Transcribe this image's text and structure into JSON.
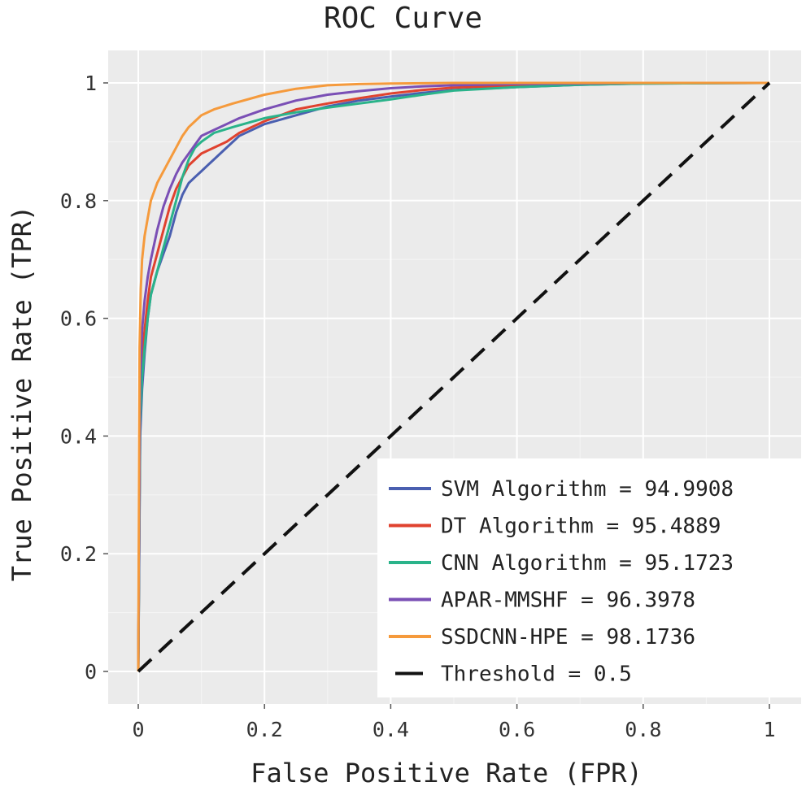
{
  "chart_data": {
    "type": "line",
    "title": "ROC Curve",
    "xlabel": "False Positive Rate (FPR)",
    "ylabel": "True Positive Rate (TPR)",
    "xlim": [
      0,
      1
    ],
    "ylim": [
      0,
      1
    ],
    "xticks": [
      0,
      0.2,
      0.4,
      0.6,
      0.8,
      1
    ],
    "yticks": [
      0,
      0.2,
      0.4,
      0.6,
      0.8,
      1
    ],
    "xtick_labels": [
      "0",
      "0.2",
      "0.4",
      "0.6",
      "0.8",
      "1"
    ],
    "ytick_labels": [
      "0",
      "0.2",
      "0.4",
      "0.6",
      "0.8",
      "1"
    ],
    "grid": true,
    "legend_position": "bottom-right",
    "series": [
      {
        "name": "SVM Algorithm = 94.9908",
        "color": "#4a5fb0",
        "dash": "solid",
        "x": [
          0,
          0.003,
          0.006,
          0.01,
          0.015,
          0.02,
          0.03,
          0.04,
          0.05,
          0.06,
          0.07,
          0.08,
          0.09,
          0.1,
          0.12,
          0.14,
          0.16,
          0.2,
          0.25,
          0.3,
          0.35,
          0.4,
          0.45,
          0.5,
          0.6,
          0.7,
          0.8,
          1
        ],
        "y": [
          0,
          0.4,
          0.48,
          0.54,
          0.6,
          0.64,
          0.68,
          0.71,
          0.74,
          0.78,
          0.81,
          0.83,
          0.84,
          0.85,
          0.87,
          0.89,
          0.91,
          0.93,
          0.945,
          0.96,
          0.97,
          0.977,
          0.983,
          0.988,
          0.993,
          0.997,
          0.999,
          1
        ]
      },
      {
        "name": "DT Algorithm = 95.4889",
        "color": "#e0422f",
        "dash": "solid",
        "x": [
          0,
          0.003,
          0.006,
          0.01,
          0.015,
          0.02,
          0.03,
          0.04,
          0.05,
          0.06,
          0.07,
          0.08,
          0.1,
          0.12,
          0.14,
          0.16,
          0.2,
          0.25,
          0.3,
          0.35,
          0.4,
          0.45,
          0.5,
          0.6,
          0.7,
          0.8,
          1
        ],
        "y": [
          0,
          0.45,
          0.53,
          0.58,
          0.63,
          0.67,
          0.71,
          0.75,
          0.79,
          0.82,
          0.84,
          0.86,
          0.88,
          0.89,
          0.9,
          0.915,
          0.935,
          0.955,
          0.965,
          0.974,
          0.982,
          0.988,
          0.992,
          0.996,
          0.998,
          1,
          1
        ]
      },
      {
        "name": "CNN Algorithm = 95.1723",
        "color": "#2ab38a",
        "dash": "solid",
        "x": [
          0,
          0.003,
          0.006,
          0.01,
          0.015,
          0.02,
          0.03,
          0.04,
          0.05,
          0.06,
          0.07,
          0.08,
          0.09,
          0.1,
          0.12,
          0.15,
          0.2,
          0.25,
          0.3,
          0.35,
          0.4,
          0.45,
          0.5,
          0.6,
          0.7,
          0.8,
          1
        ],
        "y": [
          0,
          0.42,
          0.5,
          0.55,
          0.6,
          0.64,
          0.68,
          0.72,
          0.76,
          0.8,
          0.84,
          0.87,
          0.89,
          0.9,
          0.915,
          0.925,
          0.94,
          0.95,
          0.958,
          0.965,
          0.972,
          0.98,
          0.987,
          0.993,
          0.997,
          0.999,
          1
        ]
      },
      {
        "name": "APAR-MMSHF = 96.3978",
        "color": "#7a4fb5",
        "dash": "solid",
        "x": [
          0,
          0.003,
          0.006,
          0.01,
          0.015,
          0.02,
          0.03,
          0.04,
          0.05,
          0.06,
          0.07,
          0.08,
          0.09,
          0.1,
          0.12,
          0.14,
          0.16,
          0.2,
          0.25,
          0.3,
          0.35,
          0.4,
          0.45,
          0.5,
          0.6,
          0.7,
          0.8,
          1
        ],
        "y": [
          0,
          0.5,
          0.58,
          0.63,
          0.67,
          0.7,
          0.75,
          0.79,
          0.82,
          0.845,
          0.865,
          0.88,
          0.895,
          0.91,
          0.92,
          0.93,
          0.94,
          0.955,
          0.97,
          0.98,
          0.986,
          0.991,
          0.994,
          0.996,
          0.998,
          0.999,
          1,
          1
        ]
      },
      {
        "name": "SSDCNN-HPE = 98.1736",
        "color": "#f59a3c",
        "dash": "solid",
        "x": [
          0,
          0.002,
          0.004,
          0.006,
          0.01,
          0.015,
          0.02,
          0.03,
          0.04,
          0.05,
          0.06,
          0.07,
          0.08,
          0.09,
          0.1,
          0.12,
          0.15,
          0.2,
          0.25,
          0.3,
          0.35,
          0.4,
          0.5,
          0.6,
          0.8,
          1
        ],
        "y": [
          0,
          0.55,
          0.65,
          0.7,
          0.74,
          0.77,
          0.8,
          0.83,
          0.85,
          0.87,
          0.89,
          0.91,
          0.925,
          0.935,
          0.945,
          0.955,
          0.965,
          0.98,
          0.99,
          0.996,
          0.998,
          0.999,
          1,
          1,
          1,
          1
        ]
      },
      {
        "name": "Threshold = 0.5",
        "color": "#111111",
        "dash": "dashed",
        "x": [
          0,
          1
        ],
        "y": [
          0,
          1
        ]
      }
    ]
  }
}
